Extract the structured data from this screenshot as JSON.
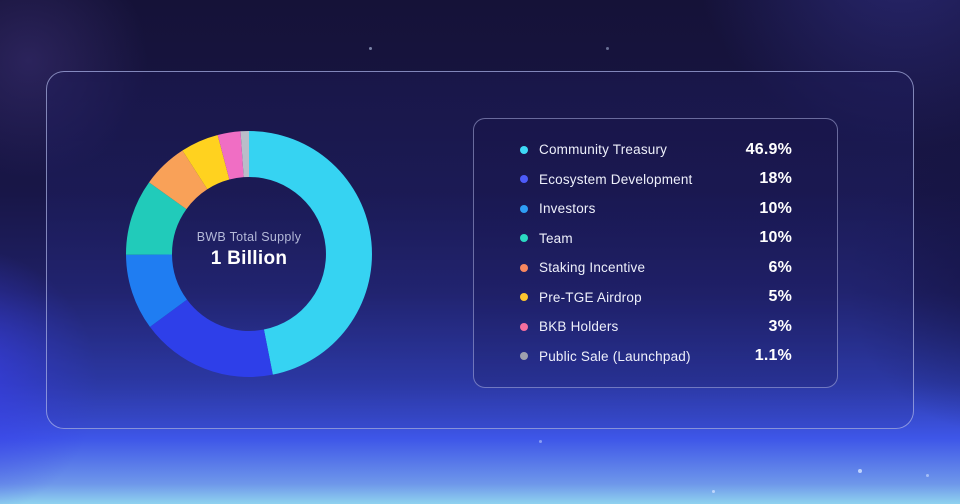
{
  "chart_data": {
    "type": "pie",
    "style": "donut",
    "center_label": "BWB Total Supply",
    "center_value": "1 Billion",
    "legend_position": "right",
    "start_angle_deg": 0,
    "direction": "clockwise",
    "categories": [
      "Community Treasury",
      "Ecosystem Development",
      "Investors",
      "Team",
      "Staking Incentive",
      "Pre-TGE Airdrop",
      "BKB Holders",
      "Public Sale (Launchpad)"
    ],
    "values": [
      46.9,
      18,
      10,
      10,
      6,
      5,
      3,
      1.1
    ],
    "items": [
      {
        "label": "Community Treasury",
        "value": 46.9,
        "percent": "46.9%",
        "segment_color": "#36d3f2",
        "dot_color": "#3ed9f6"
      },
      {
        "label": "Ecosystem Development",
        "value": 18,
        "percent": "18%",
        "segment_color": "#2e3fe9",
        "dot_color": "#4d5bf9"
      },
      {
        "label": "Investors",
        "value": 10,
        "percent": "10%",
        "segment_color": "#1f7df2",
        "dot_color": "#2e9df5"
      },
      {
        "label": "Team",
        "value": 10,
        "percent": "10%",
        "segment_color": "#21cbba",
        "dot_color": "#2bd9c2"
      },
      {
        "label": "Staking Incentive",
        "value": 6,
        "percent": "6%",
        "segment_color": "#f9a158",
        "dot_color": "#f8875f"
      },
      {
        "label": "Pre-TGE Airdrop",
        "value": 5,
        "percent": "5%",
        "segment_color": "#ffd21f",
        "dot_color": "#fdc62e"
      },
      {
        "label": "BKB Holders",
        "value": 3,
        "percent": "3%",
        "segment_color": "#f06ec4",
        "dot_color": "#f56e9e"
      },
      {
        "label": "Public Sale (Launchpad)",
        "value": 1.1,
        "percent": "1.1%",
        "segment_color": "#b9bdc9",
        "dot_color": "#9fa1ae"
      }
    ]
  }
}
